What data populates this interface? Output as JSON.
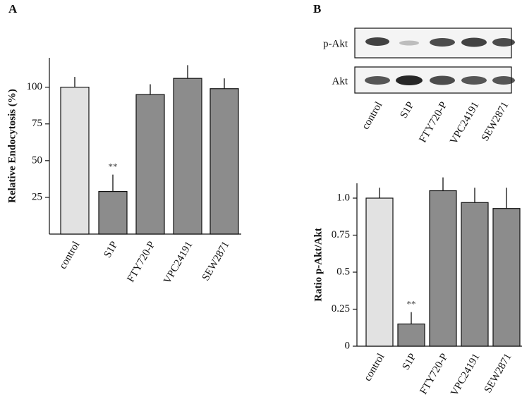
{
  "chart_data": [
    {
      "type": "bar",
      "panel": "A",
      "ylabel": "Relative Endocytosis (%)",
      "categories": [
        "control",
        "S1P",
        "FTY720-P",
        "VPC24191",
        "SEW2871"
      ],
      "values": [
        100,
        29,
        95,
        106,
        99
      ],
      "errors": [
        7,
        11.5,
        7,
        9,
        7
      ],
      "colors": [
        "#e2e2e2",
        "#8c8c8c",
        "#8c8c8c",
        "#8c8c8c",
        "#8c8c8c"
      ],
      "ylim": [
        0,
        120
      ],
      "yticks": [
        25,
        50,
        75,
        100
      ],
      "annotations": [
        {
          "text": "**",
          "x": "S1P"
        }
      ]
    },
    {
      "type": "bar",
      "panel": "B",
      "ylabel": "Ratio p-Akt/Akt",
      "categories": [
        "control",
        "S1P",
        "FTY720-P",
        "VPC24191",
        "SEW2871"
      ],
      "values": [
        1.0,
        0.15,
        1.05,
        0.97,
        0.93
      ],
      "errors": [
        0.07,
        0.08,
        0.09,
        0.1,
        0.14
      ],
      "colors": [
        "#e2e2e2",
        "#8c8c8c",
        "#8c8c8c",
        "#8c8c8c",
        "#8c8c8c"
      ],
      "ylim": [
        0,
        1.1
      ],
      "yticks": [
        0,
        0.25,
        0.5,
        0.75,
        {
          "value": 1,
          "label": "1.0"
        }
      ],
      "annotations": [
        {
          "text": "**",
          "x": "S1P"
        }
      ]
    }
  ],
  "blot": {
    "rows": [
      "p-Akt",
      "Akt"
    ],
    "lanes": [
      "control",
      "S1P",
      "FTY720-P",
      "VPC24191",
      "SEW2871"
    ]
  }
}
